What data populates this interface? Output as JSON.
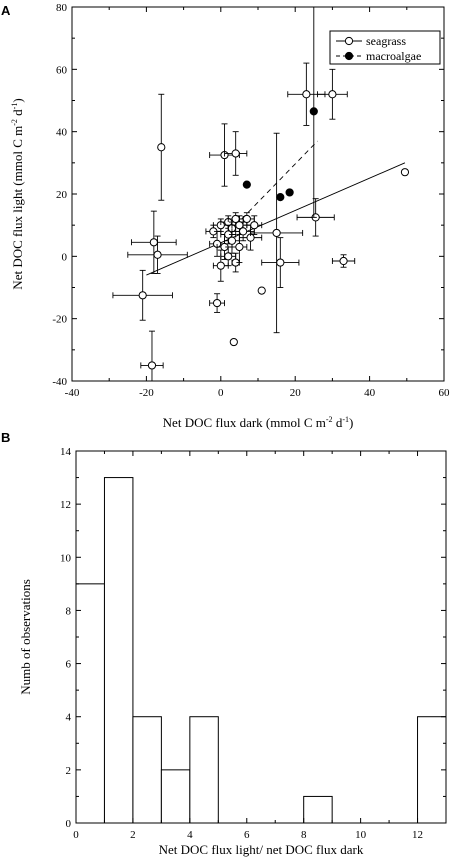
{
  "chart_data": [
    {
      "panel_label": "A",
      "type": "scatter",
      "xlabel": "Net DOC flux dark (mmol C m",
      "xlabel_sup1": "-2",
      "xlabel_mid": " d",
      "xlabel_sup2": "-1",
      "xlabel_end": ")",
      "ylabel": "Net DOC flux light (mmol C m",
      "ylabel_sup1": "-2",
      "ylabel_mid": " d",
      "ylabel_sup2": "-1",
      "ylabel_end": ")",
      "xlim": [
        -40,
        60
      ],
      "ylim": [
        -40,
        80
      ],
      "xticks": [
        -40,
        -20,
        0,
        20,
        40,
        60
      ],
      "yticks": [
        -40,
        -20,
        0,
        20,
        40,
        60,
        80
      ],
      "legend_position": "top-right",
      "series": [
        {
          "name": "seagrass",
          "marker": "open-circle",
          "line": "solid",
          "fit": [
            [
              -20,
              -6
            ],
            [
              49.5,
              30
            ]
          ],
          "points": [
            {
              "x": -21,
              "y": -12.5,
              "xerr": 8,
              "yerr": 8
            },
            {
              "x": -18.5,
              "y": -35,
              "xerr": 3,
              "yerr": 11
            },
            {
              "x": -18,
              "y": 4.5,
              "xerr": 6,
              "yerr": 10
            },
            {
              "x": -17,
              "y": 0.5,
              "xerr": 8,
              "yerr": 6
            },
            {
              "x": -16,
              "y": 35,
              "xerr": 0,
              "yerr": 17
            },
            {
              "x": -2,
              "y": 8,
              "xerr": 2,
              "yerr": 2
            },
            {
              "x": -1,
              "y": 4,
              "xerr": 2,
              "yerr": 4
            },
            {
              "x": -1,
              "y": -15,
              "xerr": 2,
              "yerr": 3
            },
            {
              "x": 0,
              "y": -3,
              "xerr": 2,
              "yerr": 5
            },
            {
              "x": 0,
              "y": 10,
              "xerr": 2,
              "yerr": 2
            },
            {
              "x": 1,
              "y": 32.5,
              "xerr": 4,
              "yerr": 10
            },
            {
              "x": 1,
              "y": 3,
              "xerr": 2,
              "yerr": 4
            },
            {
              "x": 2,
              "y": 11,
              "xerr": 2,
              "yerr": 2
            },
            {
              "x": 2,
              "y": 7,
              "xerr": 2,
              "yerr": 3
            },
            {
              "x": 2,
              "y": 0,
              "xerr": 2,
              "yerr": 3
            },
            {
              "x": 3,
              "y": 5,
              "xerr": 2,
              "yerr": 4
            },
            {
              "x": 3,
              "y": 9,
              "xerr": 1,
              "yerr": 2
            },
            {
              "x": 4,
              "y": 33,
              "xerr": 3,
              "yerr": 7
            },
            {
              "x": 4,
              "y": -2,
              "xerr": 1,
              "yerr": 3
            },
            {
              "x": 4,
              "y": 12,
              "xerr": 2,
              "yerr": 2
            },
            {
              "x": 5,
              "y": 3,
              "xerr": 2,
              "yerr": 5
            },
            {
              "x": 5,
              "y": 10,
              "xerr": 2,
              "yerr": 3
            },
            {
              "x": 6,
              "y": 8,
              "xerr": 3,
              "yerr": 3
            },
            {
              "x": 7,
              "y": 12,
              "xerr": 2,
              "yerr": 2
            },
            {
              "x": 8,
              "y": 6,
              "xerr": 3,
              "yerr": 4
            },
            {
              "x": 9,
              "y": 10,
              "xerr": 2,
              "yerr": 3
            },
            {
              "x": 3.5,
              "y": -27.5,
              "xerr": 0,
              "yerr": 0
            },
            {
              "x": 11,
              "y": -11,
              "xerr": 0,
              "yerr": 0
            },
            {
              "x": 15,
              "y": 7.5,
              "xerr": 7,
              "yerr": 32
            },
            {
              "x": 16,
              "y": -2,
              "xerr": 5,
              "yerr": 8
            },
            {
              "x": 23,
              "y": 52,
              "xerr": 5,
              "yerr": 10
            },
            {
              "x": 25.5,
              "y": 12.5,
              "xerr": 5,
              "yerr": 6
            },
            {
              "x": 30,
              "y": 52,
              "xerr": 4,
              "yerr": 8
            },
            {
              "x": 33,
              "y": -1.5,
              "xerr": 3,
              "yerr": 2
            },
            {
              "x": 49.5,
              "y": 27,
              "xerr": 0,
              "yerr": 0
            }
          ]
        },
        {
          "name": "macroalgae",
          "marker": "filled-circle",
          "line": "dashed",
          "fit": [
            [
              4,
              10
            ],
            [
              26,
              37
            ]
          ],
          "points": [
            {
              "x": 7,
              "y": 23,
              "xerr": 0,
              "yerr": 0
            },
            {
              "x": 16,
              "y": 19,
              "xerr": 0,
              "yerr": 0
            },
            {
              "x": 18.5,
              "y": 20.5,
              "xerr": 0,
              "yerr": 0
            },
            {
              "x": 25,
              "y": 46.5,
              "xerr": 0,
              "yerr": 34
            }
          ]
        }
      ]
    },
    {
      "panel_label": "B",
      "type": "bar",
      "xlabel": "Net DOC flux light/ net DOC flux dark",
      "ylabel": "Numb of observations",
      "xlim": [
        0,
        13
      ],
      "ylim": [
        0,
        14
      ],
      "xticks": [
        0,
        2,
        4,
        6,
        8,
        10,
        12
      ],
      "yticks": [
        0,
        2,
        4,
        6,
        8,
        10,
        12,
        14
      ],
      "bins": [
        {
          "x0": 0,
          "x1": 1,
          "count": 9
        },
        {
          "x0": 1,
          "x1": 2,
          "count": 13
        },
        {
          "x0": 2,
          "x1": 3,
          "count": 4
        },
        {
          "x0": 3,
          "x1": 4,
          "count": 2
        },
        {
          "x0": 4,
          "x1": 5,
          "count": 4
        },
        {
          "x0": 8,
          "x1": 9,
          "count": 1
        },
        {
          "x0": 12,
          "x1": 13,
          "count": 4
        }
      ]
    }
  ]
}
